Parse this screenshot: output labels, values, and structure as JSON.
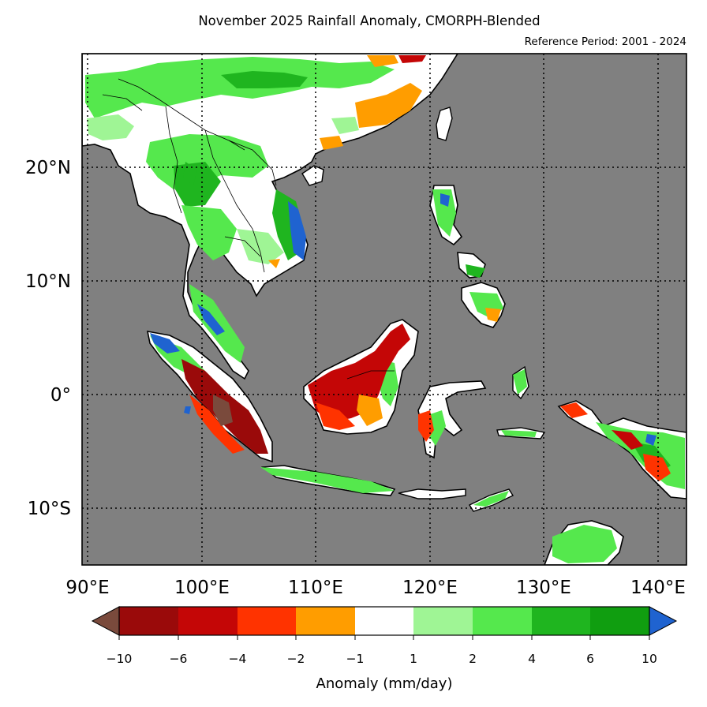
{
  "title": "November 2025 Rainfall Anomaly, CMORPH-Blended",
  "subtitle": "Reference Period: 2001 - 2024",
  "map": {
    "background_color": "#808080",
    "lon_ticks": [
      "90°E",
      "100°E",
      "110°E",
      "120°E",
      "130°E",
      "140°E"
    ],
    "lat_ticks": [
      "20°N",
      "10°N",
      "0°",
      "10°S"
    ],
    "lon_range": [
      89.5,
      142.5
    ],
    "lat_range": [
      -15,
      30
    ]
  },
  "colorbar": {
    "label": "Anomaly (mm/day)",
    "tick_labels": [
      "−10",
      "−6",
      "−4",
      "−2",
      "−1",
      "1",
      "2",
      "4",
      "6",
      "10"
    ],
    "under_color": "#7a4a3c",
    "over_color": "#1f63d0",
    "colors": [
      "#9a0a0a",
      "#c40606",
      "#ff3300",
      "#ff9d00",
      "#ffffff",
      "#9ff595",
      "#55e84d",
      "#1fb51f",
      "#109e10"
    ]
  }
}
